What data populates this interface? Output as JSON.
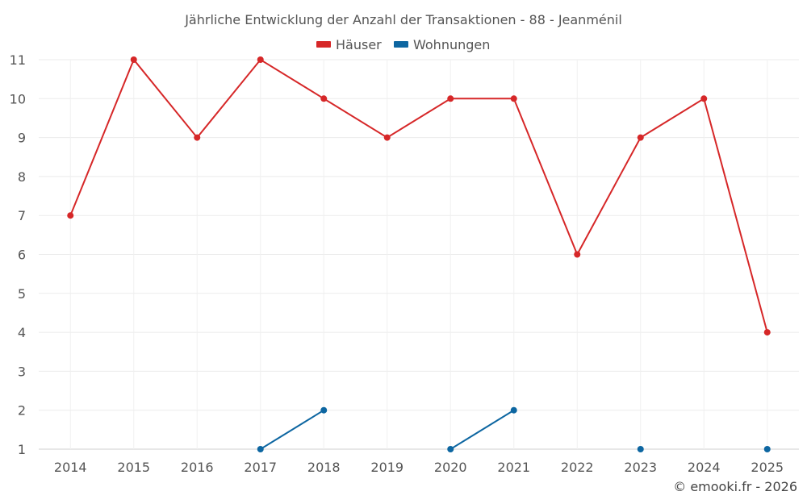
{
  "chart_data": {
    "type": "line",
    "title": "Jährliche Entwicklung der Anzahl der Transaktionen - 88 - Jeanménil",
    "x": [
      "2014",
      "2015",
      "2016",
      "2017",
      "2018",
      "2019",
      "2020",
      "2021",
      "2022",
      "2023",
      "2024",
      "2025"
    ],
    "ylim": [
      1,
      11
    ],
    "yticks": [
      1,
      2,
      3,
      4,
      5,
      6,
      7,
      8,
      9,
      10,
      11
    ],
    "grid": true,
    "legend_position": "top-center",
    "series": [
      {
        "name": "Häuser",
        "color": "#d62728",
        "values": [
          7,
          11,
          9,
          11,
          10,
          9,
          10,
          10,
          6,
          9,
          10,
          4
        ]
      },
      {
        "name": "Wohnungen",
        "color": "#0d66a1",
        "values": [
          null,
          null,
          null,
          1,
          2,
          null,
          1,
          2,
          null,
          1,
          null,
          1
        ]
      }
    ]
  },
  "credit": "© emooki.fr - 2026"
}
